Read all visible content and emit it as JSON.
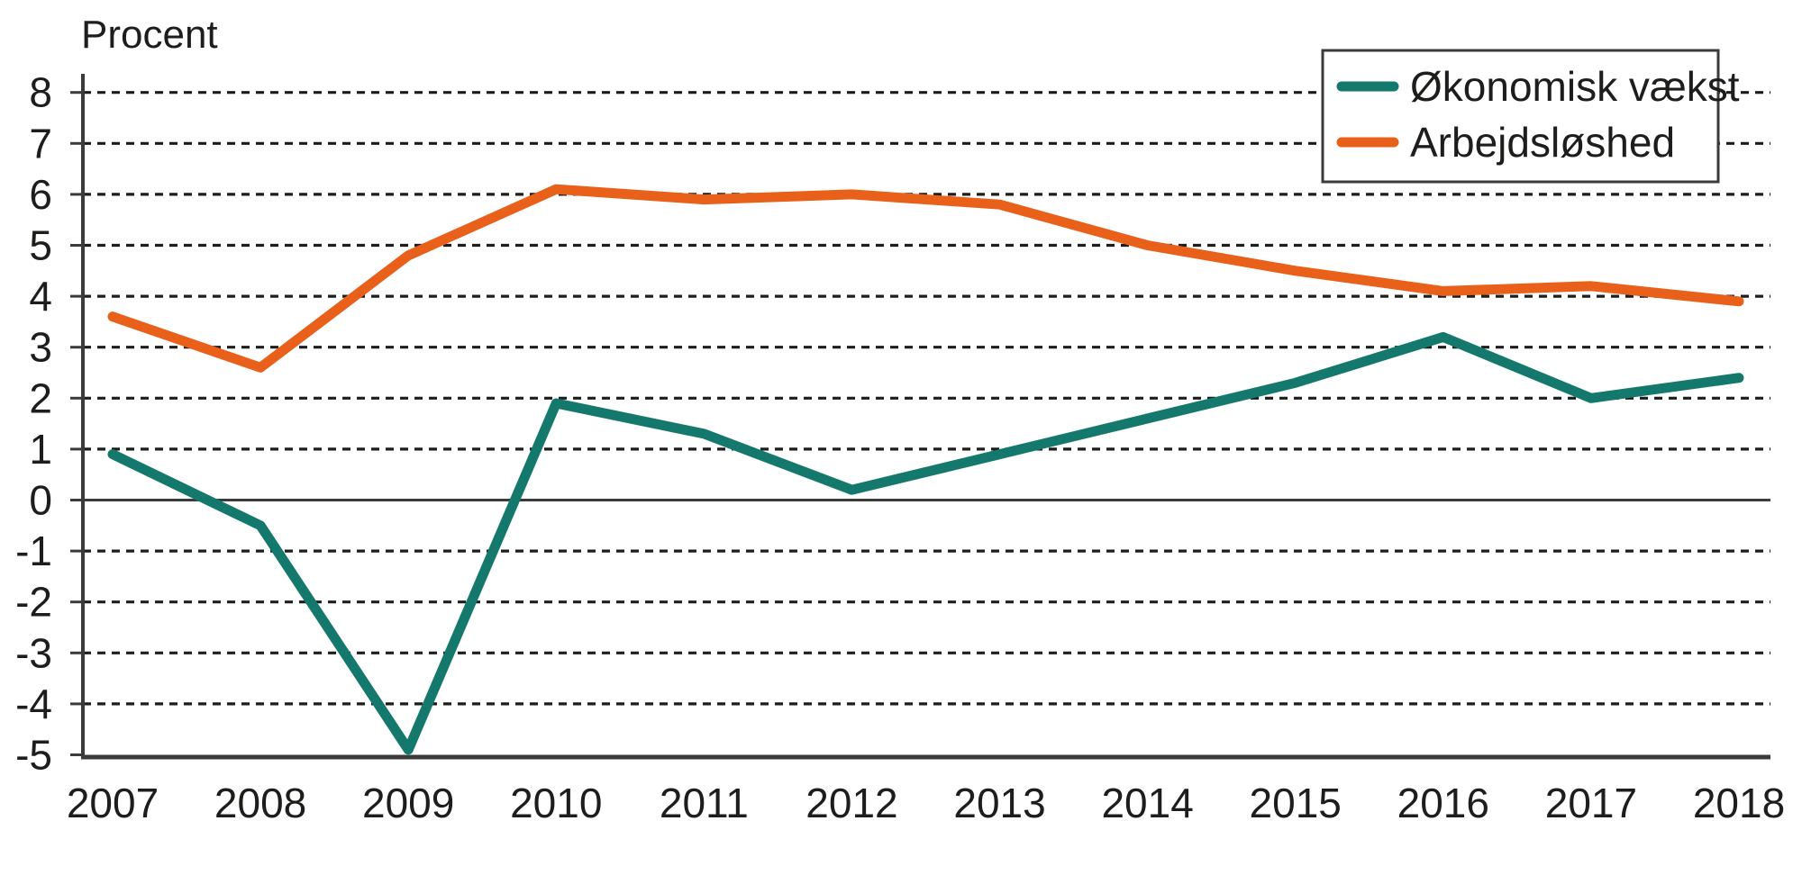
{
  "chart_data": {
    "type": "line",
    "axis_title": "Procent",
    "categories": [
      "2007",
      "2008",
      "2009",
      "2010",
      "2011",
      "2012",
      "2013",
      "2014",
      "2015",
      "2016",
      "2017",
      "2018"
    ],
    "series": [
      {
        "name": "Økonomisk vækst",
        "color": "#14796C",
        "values": [
          0.9,
          -0.5,
          -4.9,
          1.9,
          1.3,
          0.2,
          0.9,
          1.6,
          2.3,
          3.2,
          2.0,
          2.4
        ]
      },
      {
        "name": "Arbejdsløshed",
        "color": "#E9601B",
        "values": [
          3.6,
          2.6,
          4.8,
          6.1,
          5.9,
          6.0,
          5.8,
          5.0,
          4.5,
          4.1,
          4.2,
          3.9
        ]
      }
    ],
    "yticks": [
      8,
      7,
      6,
      5,
      4,
      3,
      2,
      1,
      0,
      -1,
      -2,
      -3,
      -4,
      -5
    ],
    "ylim": [
      -5,
      8
    ],
    "grid": "horizontal-dashed",
    "zero_line": "solid",
    "legend_position": "top-right",
    "colors": {
      "text": "#1D1D1B",
      "grid": "#1D1D1B",
      "axis": "#3B3B3B",
      "legend_border": "#3B3B3B",
      "background": "#FFFFFF"
    }
  }
}
